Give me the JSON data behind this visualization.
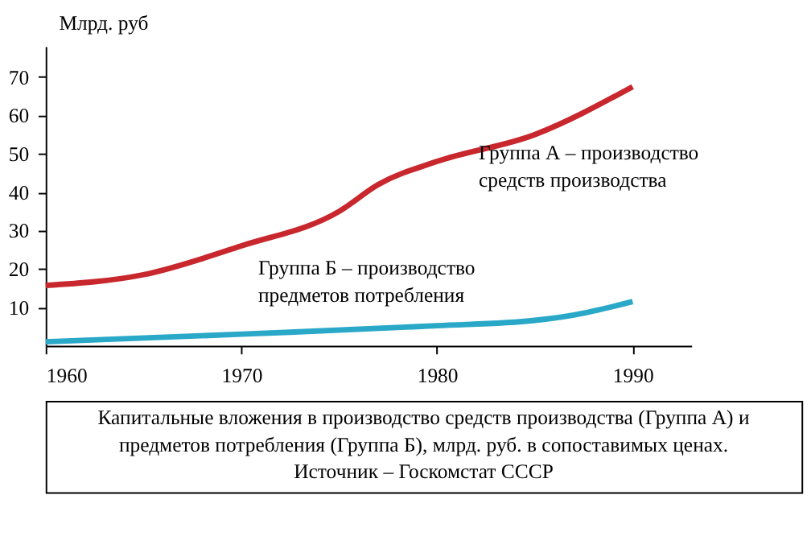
{
  "chart_data": {
    "type": "line",
    "ylabel": "Млрд. руб",
    "series": [
      {
        "color": "#c8282d",
        "x": [
          1960,
          1965,
          1970,
          1975,
          1977,
          1980,
          1985,
          1990
        ],
        "values": [
          15.7,
          18.5,
          26,
          35,
          42,
          48,
          55,
          67.5
        ]
      },
      {
        "color": "#2aa8c8",
        "x": [
          1960,
          1970,
          1980,
          1985,
          1987,
          1990
        ],
        "values": [
          1,
          3,
          5.2,
          6.6,
          8,
          11.5
        ]
      }
    ],
    "xlim": [
      1960,
      1993
    ],
    "xticks": [
      1960,
      1970,
      1980,
      1990
    ],
    "ylim": [
      0,
      78
    ],
    "yticks": [
      10,
      20,
      30,
      40,
      50,
      60,
      70
    ],
    "grid": false,
    "legend": false,
    "line_style": "solid",
    "marker": "none",
    "annotations": [
      "Группа А – производство\nсредств производства",
      "Группа Б – производство\nпредметов потребления",
      "Капитальные вложения в производство средств производства (Группа А) и\nпредметов потребления (Группа Б), млрд. руб. в сопоставимых ценах.\nИсточник – Госкомстат СССР"
    ]
  }
}
